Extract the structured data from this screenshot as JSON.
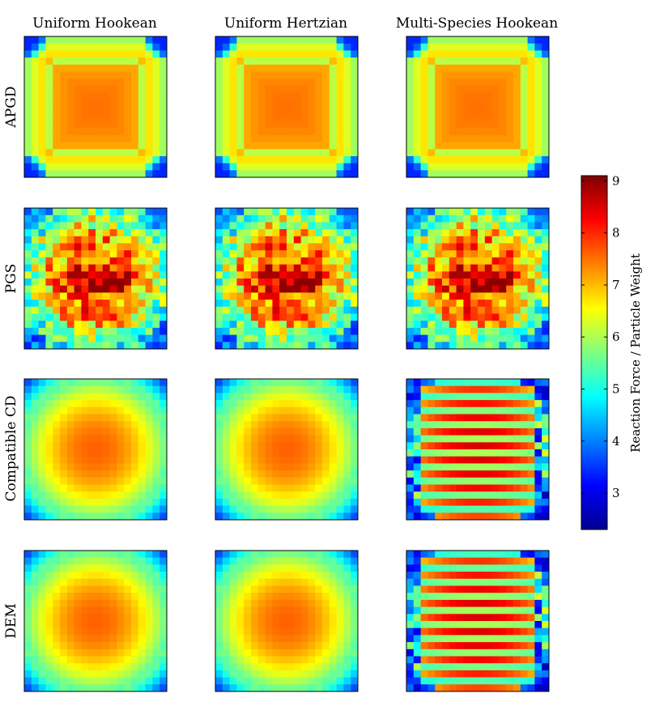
{
  "chart_data": {
    "type": "heatmap",
    "columns": [
      "Uniform Hookean",
      "Uniform Hertzian",
      "Multi-Species Hookean"
    ],
    "rows": [
      "APGD",
      "PGS",
      "Compatible CD",
      "DEM"
    ],
    "grid_size": [
      20,
      20
    ],
    "colormap": "jet",
    "value_range": [
      2.3,
      9.1
    ],
    "colorbar": {
      "label": "Reaction Force / Particle Weight",
      "ticks": [
        3,
        4,
        5,
        6,
        7,
        8,
        9
      ]
    },
    "panel_patterns": [
      [
        "square-pyramid",
        "square-pyramid",
        "square-pyramid"
      ],
      [
        "noisy-pyramid",
        "noisy-pyramid",
        "noisy-pyramid"
      ],
      [
        "radial-dome",
        "radial-dome",
        "striped-dome"
      ],
      [
        "radial-dome",
        "radial-dome",
        "striped-dome"
      ]
    ],
    "approx_values": {
      "square-pyramid": {
        "center": 7.5,
        "edge_mid": 6.3,
        "corner": 3.2
      },
      "noisy-pyramid": {
        "center": 8.0,
        "max": 9.0,
        "corner": 3.3
      },
      "radial-dome": {
        "center": 7.6,
        "edge_mid": 5.6,
        "corner": 2.9
      },
      "striped-dome": {
        "high_row_center": 8.5,
        "low_row_center": 6.0,
        "corner": 2.6
      }
    }
  }
}
